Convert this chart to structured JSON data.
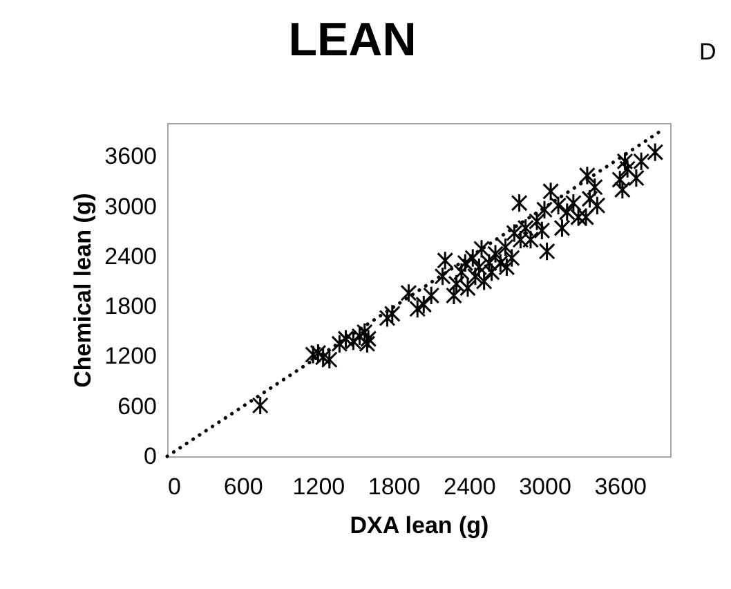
{
  "chart_data": {
    "type": "scatter",
    "title": "LEAN",
    "xlabel": "DXA lean (g)",
    "ylabel": "Chemical lean (g)",
    "annotations": [
      "D"
    ],
    "xlim": [
      0,
      4000
    ],
    "ylim": [
      0,
      4000
    ],
    "xticks": [
      0,
      600,
      1200,
      1800,
      2400,
      3000,
      3600
    ],
    "yticks": [
      0,
      600,
      1200,
      1800,
      2400,
      3000,
      3600
    ],
    "grid": false,
    "series": [
      {
        "color": "#000000",
        "marker": "cross",
        "x": [
          740,
          1160,
          1240,
          1290,
          1200,
          1370,
          1420,
          1480,
          1530,
          1590,
          1570,
          1600,
          1750,
          1790,
          1920,
          1990,
          2040,
          2100,
          2210,
          2190,
          2280,
          2300,
          2340,
          2370,
          2390,
          2430,
          2450,
          2480,
          2500,
          2520,
          2560,
          2580,
          2610,
          2650,
          2690,
          2700,
          2740,
          2760,
          2800,
          2810,
          2850,
          2890,
          2940,
          2980,
          3020,
          3000,
          3050,
          3110,
          3140,
          3180,
          3230,
          3270,
          3330,
          3340,
          3400,
          3420,
          3360,
          3600,
          3620,
          3660,
          3730,
          3770,
          3880,
          3640
        ],
        "values": [
          610,
          1220,
          1190,
          1160,
          1240,
          1350,
          1410,
          1380,
          1440,
          1350,
          1490,
          1410,
          1660,
          1710,
          1960,
          1770,
          1820,
          1930,
          2350,
          2160,
          1930,
          2070,
          2210,
          2320,
          2020,
          2380,
          2160,
          2270,
          2490,
          2100,
          2320,
          2210,
          2430,
          2320,
          2510,
          2270,
          2380,
          2680,
          3040,
          2600,
          2740,
          2600,
          2820,
          2710,
          2460,
          2960,
          3180,
          3010,
          2740,
          2930,
          3040,
          2870,
          2870,
          3370,
          3230,
          3010,
          3090,
          3320,
          3200,
          3450,
          3340,
          3540,
          3650,
          3540
        ]
      },
      {
        "type": "line",
        "color": "#000000",
        "line_style": "dotted",
        "x": [
          0,
          3950
        ],
        "values": [
          0,
          3930
        ]
      }
    ]
  }
}
